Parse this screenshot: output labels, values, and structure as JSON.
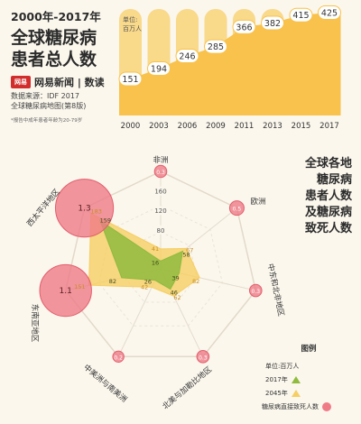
{
  "header": {
    "range": "2000年-2017年",
    "title_line1": "全球糖尿病",
    "title_line2": "患者总人数",
    "brand_logo": "网易",
    "brand_name": "网易新闻 | 数读",
    "source_line1": "数据来源：IDF 2017",
    "source_line2": "全球糖尿病地图(第8版)",
    "note": "*报告中成年患者年龄为20-79岁"
  },
  "right_title": [
    "全球各地",
    "糖尿病",
    "患者人数",
    "及糖尿病",
    "致死人数"
  ],
  "legend": {
    "title": "图例",
    "unit": "单位:百万人",
    "item_2017": "2017年",
    "item_2045": "2045年",
    "item_deaths": "糖尿病直接致死人数"
  },
  "colors": {
    "bar": "#f9d98a",
    "area": "#f8c24c",
    "green": "#8fbb3e",
    "yellow": "#f6ce63",
    "circle": "#ef7b87",
    "label": "#333333"
  },
  "chart_data": [
    {
      "type": "bar",
      "unit_label": "单位:\n百万人",
      "categories": [
        "2000",
        "2003",
        "2006",
        "2009",
        "2011",
        "2013",
        "2015",
        "2017"
      ],
      "values": [
        151,
        194,
        246,
        285,
        366,
        382,
        415,
        425
      ]
    },
    {
      "type": "radar",
      "axes": [
        "非洲",
        "欧洲",
        "中东和北非地区",
        "北美与加勒比地区",
        "中美洲与南美洲",
        "东南亚地区",
        "西太平洋地区"
      ],
      "scale_labels": [
        "80",
        "120",
        "160",
        "200"
      ],
      "rmax": 200,
      "series": [
        {
          "name": "2017年",
          "values": [
            16,
            58,
            39,
            46,
            26,
            82,
            159
          ]
        },
        {
          "name": "2045年",
          "values": [
            41,
            67,
            82,
            62,
            42,
            151,
            183
          ]
        }
      ],
      "deaths": [
        0.3,
        0.5,
        0.3,
        0.3,
        0.2,
        1.1,
        1.3
      ],
      "death_labels": [
        "0.3",
        "0.5",
        "0.3",
        "0.3",
        "0.2",
        "1.1",
        "1.3"
      ]
    }
  ]
}
